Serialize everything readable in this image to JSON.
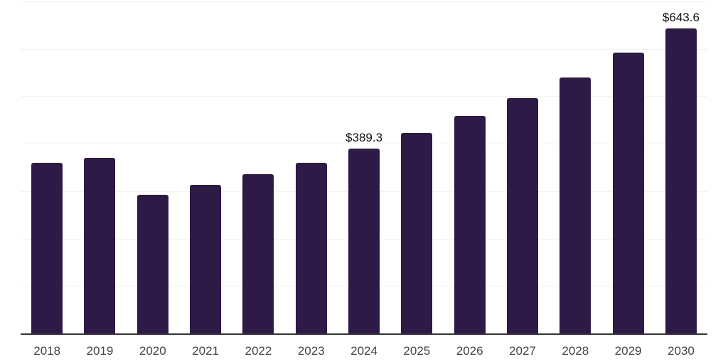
{
  "chart_data": {
    "type": "bar",
    "title": "",
    "xlabel": "",
    "ylabel": "",
    "categories": [
      "2018",
      "2019",
      "2020",
      "2021",
      "2022",
      "2023",
      "2024",
      "2025",
      "2026",
      "2027",
      "2028",
      "2029",
      "2030"
    ],
    "values": [
      360,
      370,
      293,
      314,
      336,
      360,
      389.3,
      423,
      459,
      496,
      540,
      592,
      643.6
    ],
    "bar_labels": [
      "",
      "",
      "",
      "",
      "",
      "",
      "$389.3",
      "",
      "",
      "",
      "",
      "",
      "$643.6"
    ],
    "ylim": [
      0,
      700
    ],
    "gridline_step": 100,
    "grid": "horizontal",
    "legend_position": "none",
    "unit_prefix": "$",
    "bar_color": "#2e1a47",
    "gridline_color": "#f2f2f4",
    "axis_line_color": "#333333",
    "tick_label_color": "#444444",
    "data_label_color": "#111111",
    "background_color": "#ffffff"
  }
}
